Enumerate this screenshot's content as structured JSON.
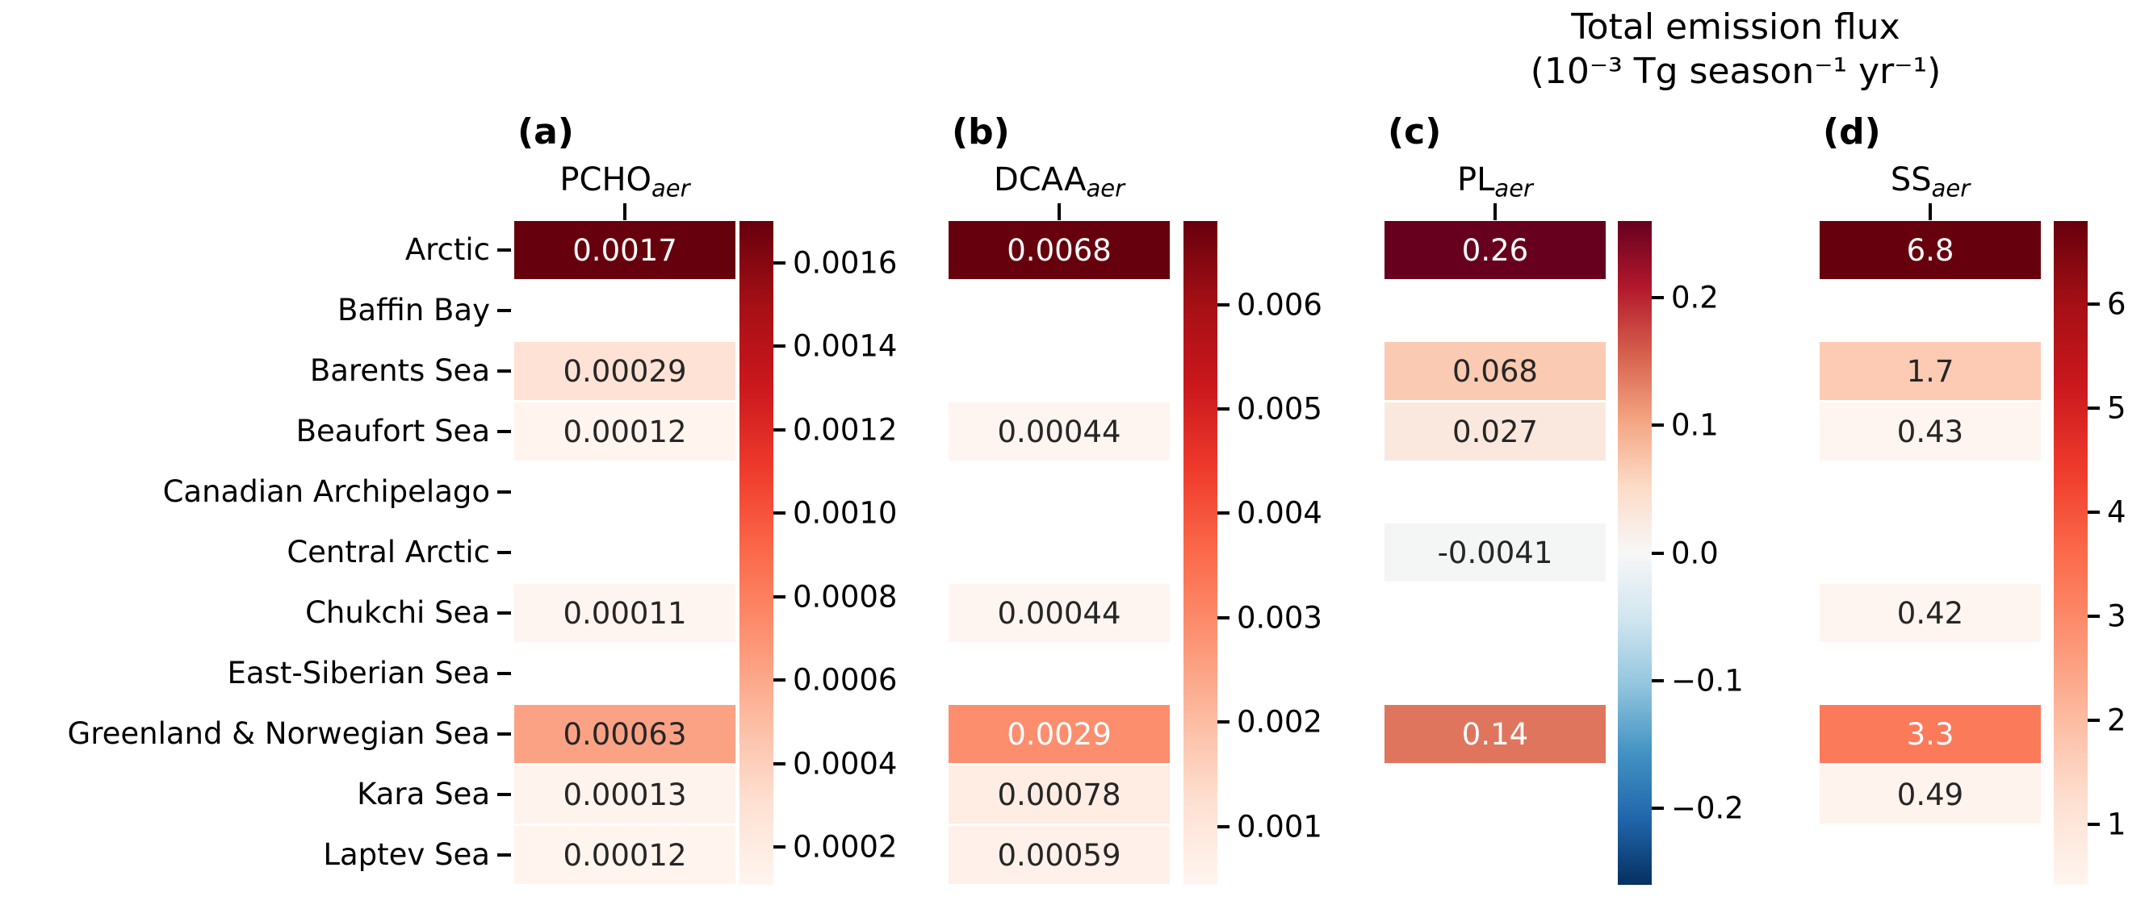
{
  "title": {
    "line1": "Total emission flux",
    "line2": "(10⁻³ Tg season⁻¹ yr⁻¹)"
  },
  "colors": {
    "annotation_dark": "#262626",
    "annotation_light": "#ffffff",
    "axis_text": "#000000",
    "background": "#ffffff",
    "colormaps": {
      "Reds": [
        "#fff5f0",
        "#fee0d2",
        "#fcbba1",
        "#fc9272",
        "#fb6a4a",
        "#ef3b2c",
        "#cb181d",
        "#a50f15",
        "#67000d"
      ],
      "RdBu_r": [
        "#053061",
        "#2166ac",
        "#4393c3",
        "#92c5de",
        "#d1e5f0",
        "#f7f7f7",
        "#fddbc7",
        "#f4a582",
        "#d6604d",
        "#b2182b",
        "#67001f"
      ]
    }
  },
  "chart_data": {
    "type": "heatmap",
    "title": "Total emission flux (10⁻³ Tg season⁻¹ yr⁻¹)",
    "rows": [
      "Arctic",
      "Baffin Bay",
      "Barents Sea",
      "Beaufort Sea",
      "Canadian Archipelago",
      "Central Arctic",
      "Chukchi Sea",
      "East-Siberian Sea",
      "Greenland & Norwegian Sea",
      "Kara Sea",
      "Laptev Sea"
    ],
    "panels": [
      {
        "letter": "(a)",
        "species": "PCHO",
        "species_subscript": "aer",
        "colormap": "Reds",
        "vmin": 0.00011,
        "vmax": 0.0017,
        "colorbar_ticks": [
          {
            "label": "0.0016",
            "value": 0.0016
          },
          {
            "label": "0.0014",
            "value": 0.0014
          },
          {
            "label": "0.0012",
            "value": 0.0012
          },
          {
            "label": "0.0010",
            "value": 0.001
          },
          {
            "label": "0.0008",
            "value": 0.0008
          },
          {
            "label": "0.0006",
            "value": 0.0006
          },
          {
            "label": "0.0004",
            "value": 0.0004
          },
          {
            "label": "0.0002",
            "value": 0.0002
          }
        ],
        "cells": [
          {
            "row": "Arctic",
            "value": 0.0017,
            "label": "0.0017",
            "white_text": true
          },
          {
            "row": "Barents Sea",
            "value": 0.00029,
            "label": "0.00029",
            "white_text": false
          },
          {
            "row": "Beaufort Sea",
            "value": 0.00012,
            "label": "0.00012",
            "white_text": false
          },
          {
            "row": "Chukchi Sea",
            "value": 0.00011,
            "label": "0.00011",
            "white_text": false
          },
          {
            "row": "Greenland & Norwegian Sea",
            "value": 0.00063,
            "label": "0.00063",
            "white_text": false
          },
          {
            "row": "Kara Sea",
            "value": 0.00013,
            "label": "0.00013",
            "white_text": false
          },
          {
            "row": "Laptev Sea",
            "value": 0.00012,
            "label": "0.00012",
            "white_text": false
          }
        ]
      },
      {
        "letter": "(b)",
        "species": "DCAA",
        "species_subscript": "aer",
        "colormap": "Reds",
        "vmin": 0.00044,
        "vmax": 0.0068,
        "colorbar_ticks": [
          {
            "label": "0.006",
            "value": 0.006
          },
          {
            "label": "0.005",
            "value": 0.005
          },
          {
            "label": "0.004",
            "value": 0.004
          },
          {
            "label": "0.003",
            "value": 0.003
          },
          {
            "label": "0.002",
            "value": 0.002
          },
          {
            "label": "0.001",
            "value": 0.001
          }
        ],
        "cells": [
          {
            "row": "Arctic",
            "value": 0.0068,
            "label": "0.0068",
            "white_text": true
          },
          {
            "row": "Beaufort Sea",
            "value": 0.00044,
            "label": "0.00044",
            "white_text": false
          },
          {
            "row": "Chukchi Sea",
            "value": 0.00044,
            "label": "0.00044",
            "white_text": false
          },
          {
            "row": "Greenland & Norwegian Sea",
            "value": 0.0029,
            "label": "0.0029",
            "white_text": true
          },
          {
            "row": "Kara Sea",
            "value": 0.00078,
            "label": "0.00078",
            "white_text": false
          },
          {
            "row": "Laptev Sea",
            "value": 0.00059,
            "label": "0.00059",
            "white_text": false
          }
        ]
      },
      {
        "letter": "(c)",
        "species": "PL",
        "species_subscript": "aer",
        "colormap": "RdBu_r",
        "vmin": -0.26,
        "vmax": 0.26,
        "colorbar_ticks": [
          {
            "label": "0.2",
            "value": 0.2
          },
          {
            "label": "0.1",
            "value": 0.1
          },
          {
            "label": "0.0",
            "value": 0.0
          },
          {
            "label": "−0.1",
            "value": -0.1
          },
          {
            "label": "−0.2",
            "value": -0.2
          }
        ],
        "cells": [
          {
            "row": "Arctic",
            "value": 0.26,
            "label": "0.26",
            "white_text": true
          },
          {
            "row": "Barents Sea",
            "value": 0.068,
            "label": "0.068",
            "white_text": false
          },
          {
            "row": "Beaufort Sea",
            "value": 0.027,
            "label": "0.027",
            "white_text": false
          },
          {
            "row": "Central Arctic",
            "value": -0.0041,
            "label": "-0.0041",
            "white_text": false
          },
          {
            "row": "Greenland & Norwegian Sea",
            "value": 0.14,
            "label": "0.14",
            "white_text": true
          }
        ]
      },
      {
        "letter": "(d)",
        "species": "SS",
        "species_subscript": "aer",
        "colormap": "Reds",
        "vmin": 0.42,
        "vmax": 6.8,
        "colorbar_ticks": [
          {
            "label": "6",
            "value": 6
          },
          {
            "label": "5",
            "value": 5
          },
          {
            "label": "4",
            "value": 4
          },
          {
            "label": "3",
            "value": 3
          },
          {
            "label": "2",
            "value": 2
          },
          {
            "label": "1",
            "value": 1
          }
        ],
        "cells": [
          {
            "row": "Arctic",
            "value": 6.8,
            "label": "6.8",
            "white_text": true
          },
          {
            "row": "Barents Sea",
            "value": 1.7,
            "label": "1.7",
            "white_text": false
          },
          {
            "row": "Beaufort Sea",
            "value": 0.43,
            "label": "0.43",
            "white_text": false
          },
          {
            "row": "Chukchi Sea",
            "value": 0.42,
            "label": "0.42",
            "white_text": false
          },
          {
            "row": "Greenland & Norwegian Sea",
            "value": 3.3,
            "label": "3.3",
            "white_text": true
          },
          {
            "row": "Kara Sea",
            "value": 0.49,
            "label": "0.49",
            "white_text": false
          }
        ]
      }
    ]
  }
}
